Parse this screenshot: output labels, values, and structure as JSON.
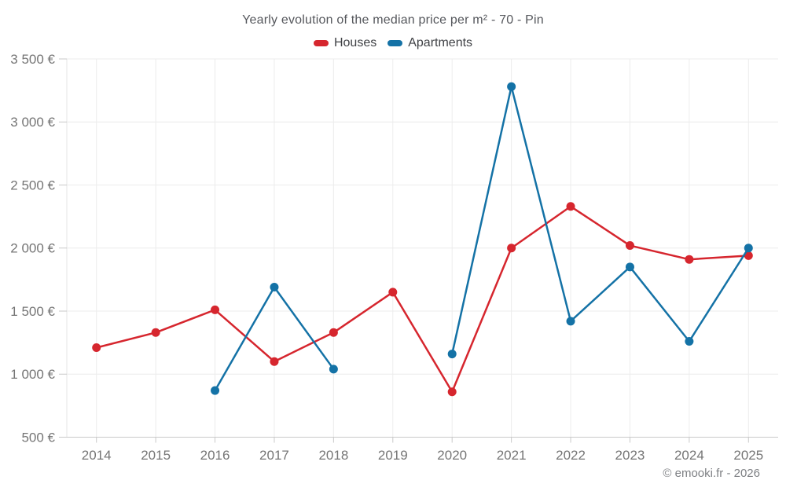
{
  "page": {
    "title": "Yearly evolution of the median price per m² - 70 - Pin",
    "footer": "© emooki.fr - 2026"
  },
  "legend": {
    "items": [
      {
        "label": "Houses",
        "color": "#d6262e"
      },
      {
        "label": "Apartments",
        "color": "#1472a6"
      }
    ]
  },
  "chart_data": {
    "type": "line",
    "title": "Yearly evolution of the median price per m² - 70 - Pin",
    "categories": [
      "2014",
      "2015",
      "2016",
      "2017",
      "2018",
      "2019",
      "2020",
      "2021",
      "2022",
      "2023",
      "2024",
      "2025"
    ],
    "series": [
      {
        "name": "Houses",
        "color": "#d6262e",
        "values": [
          1210,
          1330,
          1510,
          1100,
          1330,
          1650,
          860,
          2000,
          2330,
          2020,
          1910,
          1940
        ]
      },
      {
        "name": "Apartments",
        "color": "#1472a6",
        "values": [
          null,
          null,
          870,
          1690,
          1040,
          null,
          1160,
          3280,
          1420,
          1850,
          1260,
          2000
        ]
      }
    ],
    "ylabel": "",
    "xlabel": "",
    "ylim": [
      500,
      3500
    ],
    "ytick_step": 500,
    "ytick_labels": [
      "500 €",
      "1 000 €",
      "1 500 €",
      "2 000 €",
      "2 500 €",
      "3 000 €",
      "3 500 €"
    ],
    "grid": true,
    "legend_position": "top",
    "currency": "€"
  }
}
